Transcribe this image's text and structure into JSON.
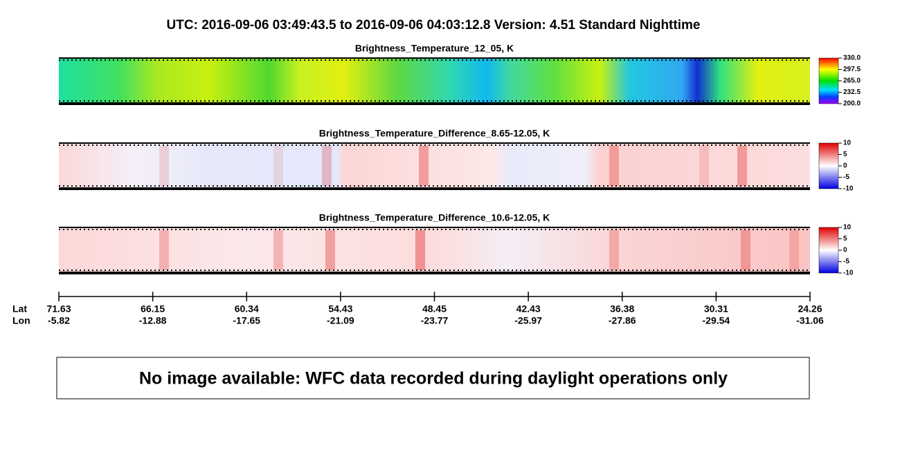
{
  "header": {
    "title": "UTC:  2016-09-06   03:49:43.5  to  2016-09-06   04:03:12.8    Version: 4.51  Standard Nighttime"
  },
  "panels": [
    {
      "title": "Brightness_Temperature_12_05, K",
      "colorbar_ticks": [
        "330.0",
        "297.5",
        "265.0",
        "232.5",
        "200.0"
      ]
    },
    {
      "title": "Brightness_Temperature_Difference_8.65-12.05, K",
      "colorbar_ticks": [
        "10",
        "5",
        "0",
        "-5",
        "-10"
      ]
    },
    {
      "title": "Brightness_Temperature_Difference_10.6-12.05, K",
      "colorbar_ticks": [
        "10",
        "5",
        "0",
        "-5",
        "-10"
      ]
    }
  ],
  "axis": {
    "row_labels": [
      "Lat",
      "Lon"
    ],
    "ticks": [
      {
        "lat": "71.63",
        "lon": "-5.82"
      },
      {
        "lat": "66.15",
        "lon": "-12.88"
      },
      {
        "lat": "60.34",
        "lon": "-17.65"
      },
      {
        "lat": "54.43",
        "lon": "-21.09"
      },
      {
        "lat": "48.45",
        "lon": "-23.77"
      },
      {
        "lat": "42.43",
        "lon": "-25.97"
      },
      {
        "lat": "36.38",
        "lon": "-27.86"
      },
      {
        "lat": "30.31",
        "lon": "-29.54"
      },
      {
        "lat": "24.26",
        "lon": "-31.06"
      }
    ]
  },
  "message": "No image available: WFC data recorded during daylight operations only"
}
